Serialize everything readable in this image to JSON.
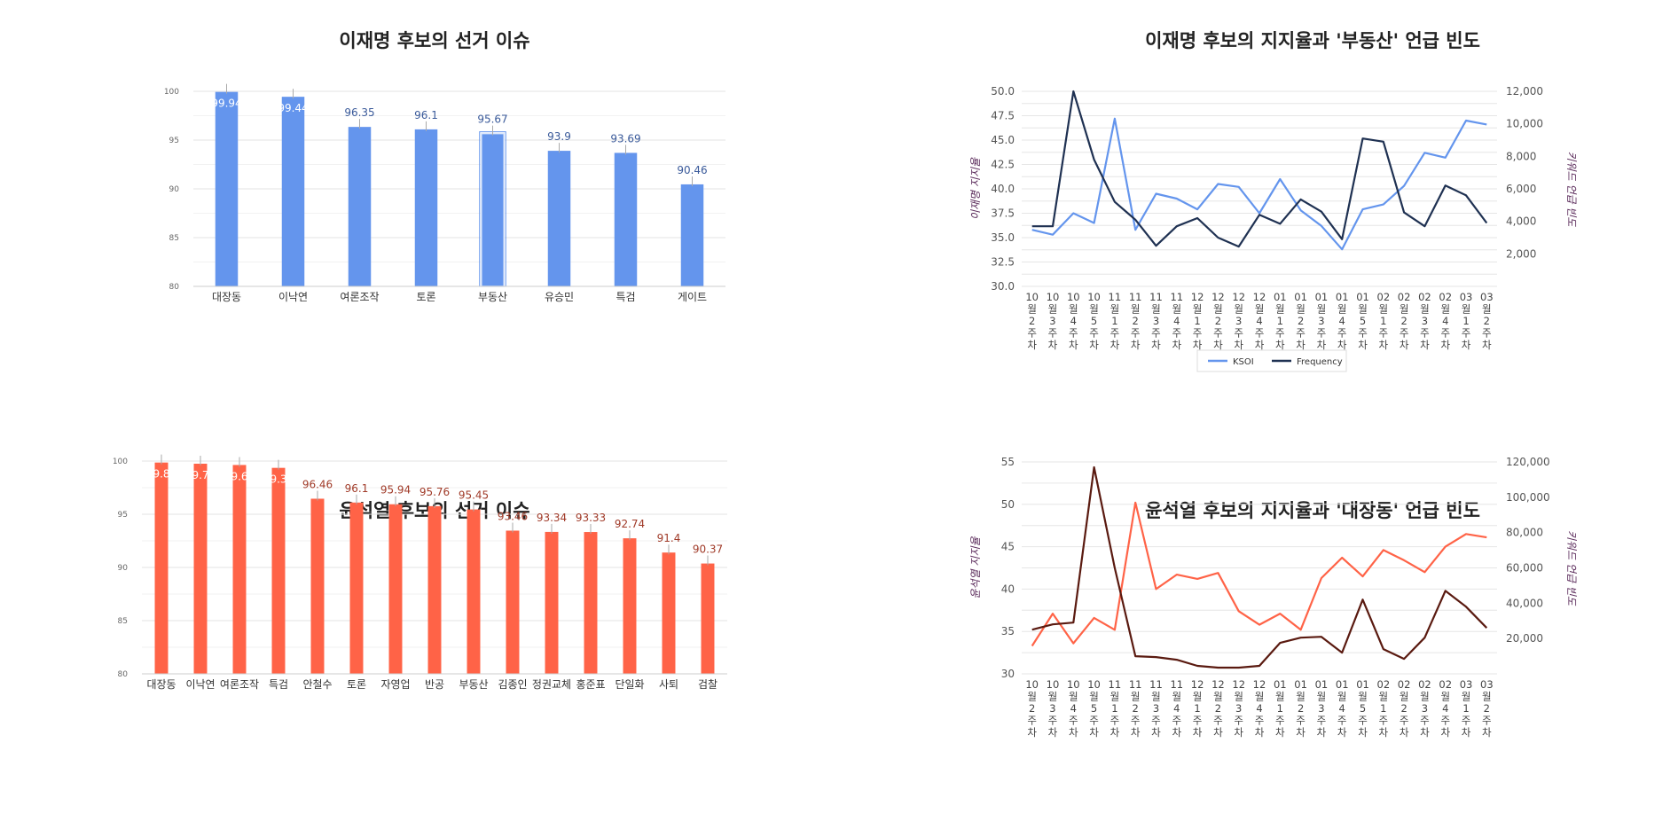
{
  "colors": {
    "lee": "#6495ED",
    "lee_dark": "#1F3152",
    "yoon": "#FF6347",
    "yoon_dark": "#5A1A10"
  },
  "chart_data": [
    {
      "type": "bar",
      "title": "이재명 후보의 선거 이슈",
      "categories": [
        "대장동",
        "이낙연",
        "여론조작",
        "토론",
        "부동산",
        "유승민",
        "특검",
        "게이트"
      ],
      "values": [
        99.94,
        99.44,
        96.35,
        96.1,
        95.67,
        93.9,
        93.69,
        90.46
      ],
      "labels": [
        "99.94",
        "99.44",
        "96.35",
        "96.1",
        "95.67",
        "93.9",
        "93.69",
        "90.46"
      ],
      "ylim": [
        80,
        100
      ],
      "yticks": [
        "80",
        "85",
        "90",
        "95",
        "100"
      ],
      "highlight": "부동산",
      "grid": true
    },
    {
      "type": "line",
      "title": "이재명 후보의 지지율과 '부동산' 언급 빈도",
      "ylabel": "이재명 지지율",
      "y2label": "키워드 언급 빈도",
      "x": [
        "10월2주차",
        "10월3주차",
        "10월4주차",
        "10월5주차",
        "11월1주차",
        "11월2주차",
        "11월3주차",
        "11월4주차",
        "12월1주차",
        "12월2주차",
        "12월3주차",
        "12월4주차",
        "01월1주차",
        "01월2주차",
        "01월3주차",
        "01월4주차",
        "01월5주차",
        "02월1주차",
        "02월2주차",
        "02월3주차",
        "02월4주차",
        "03월1주차",
        "03월2주차"
      ],
      "series": [
        {
          "name": "KSOI",
          "axis": "left",
          "values": [
            35.8,
            35.3,
            37.5,
            36.5,
            47.2,
            35.8,
            39.5,
            39.0,
            37.9,
            40.5,
            40.2,
            37.5,
            41.0,
            37.8,
            36.2,
            33.8,
            37.9,
            38.4,
            40.3,
            43.7,
            43.2,
            47.0,
            46.6
          ]
        },
        {
          "name": "Frequency",
          "axis": "right",
          "values": [
            3700,
            3700,
            12000,
            7800,
            5200,
            4100,
            2500,
            3700,
            4200,
            3000,
            2450,
            4400,
            3850,
            5350,
            4600,
            2900,
            9100,
            8900,
            4550,
            3700,
            6200,
            5600,
            3900
          ]
        }
      ],
      "ylim": [
        30,
        50
      ],
      "yticks": [
        "30.0",
        "32.5",
        "35.0",
        "37.5",
        "40.0",
        "42.5",
        "45.0",
        "47.5",
        "50.0"
      ],
      "y2lim": [
        0,
        12000
      ],
      "y2ticks": [
        "2,000",
        "4,000",
        "6,000",
        "8,000",
        "10,000",
        "12,000"
      ],
      "legend": "bottom",
      "grid": true
    },
    {
      "type": "bar",
      "title": "윤석열 후보의 선거 이슈",
      "categories": [
        "대장동",
        "이낙연",
        "여론조작",
        "특검",
        "안철수",
        "토론",
        "자영업",
        "반공",
        "부동산",
        "김종인",
        "정권교체",
        "홍준표",
        "단일화",
        "사퇴",
        "검찰"
      ],
      "values": [
        99.86,
        99.75,
        99.63,
        99.36,
        96.46,
        96.1,
        95.94,
        95.76,
        95.45,
        93.46,
        93.34,
        93.33,
        92.74,
        91.4,
        90.37
      ],
      "labels": [
        "99.86",
        "99.75",
        "99.63",
        "99.36",
        "96.46",
        "96.1",
        "95.94",
        "95.76",
        "95.45",
        "93.46",
        "93.34",
        "93.33",
        "92.74",
        "91.4",
        "90.37"
      ],
      "ylim": [
        80,
        100
      ],
      "yticks": [
        "80",
        "85",
        "90",
        "95",
        "100"
      ],
      "grid": true
    },
    {
      "type": "line",
      "title": "윤석열 후보의 지지율과 '대장동' 언급 빈도",
      "ylabel": "윤석열 지지율",
      "y2label": "키워드 언급 빈도",
      "x": [
        "10월2주차",
        "10월3주차",
        "10월4주차",
        "10월5주차",
        "11월1주차",
        "11월2주차",
        "11월3주차",
        "11월4주차",
        "12월1주차",
        "12월2주차",
        "12월3주차",
        "12월4주차",
        "01월1주차",
        "01월2주차",
        "01월3주차",
        "01월4주차",
        "01월5주차",
        "02월1주차",
        "02월2주차",
        "02월3주차",
        "02월4주차",
        "03월1주차",
        "03월2주차"
      ],
      "series": [
        {
          "name": "윤석열 지지율",
          "axis": "left",
          "values": [
            33.3,
            37.1,
            33.6,
            36.6,
            35.2,
            50.2,
            40.0,
            41.7,
            41.2,
            41.9,
            37.4,
            35.8,
            37.1,
            35.2,
            41.3,
            43.7,
            41.5,
            44.6,
            43.4,
            42.0,
            45.0,
            46.5,
            46.1
          ]
        },
        {
          "name": "대장동 언급 빈도",
          "axis": "right",
          "values": [
            25000,
            28000,
            29000,
            117000,
            60000,
            10000,
            9500,
            8000,
            4500,
            3500,
            3500,
            4500,
            17500,
            20500,
            21000,
            12000,
            42000,
            14000,
            8500,
            20500,
            47000,
            38000,
            26000
          ]
        }
      ],
      "ylim": [
        30,
        55
      ],
      "yticks": [
        "30",
        "35",
        "40",
        "45",
        "50",
        "55"
      ],
      "y2lim": [
        0,
        120000
      ],
      "y2ticks": [
        "20,000",
        "40,000",
        "60,000",
        "80,000",
        "100,000",
        "120,000"
      ],
      "grid": true
    }
  ]
}
